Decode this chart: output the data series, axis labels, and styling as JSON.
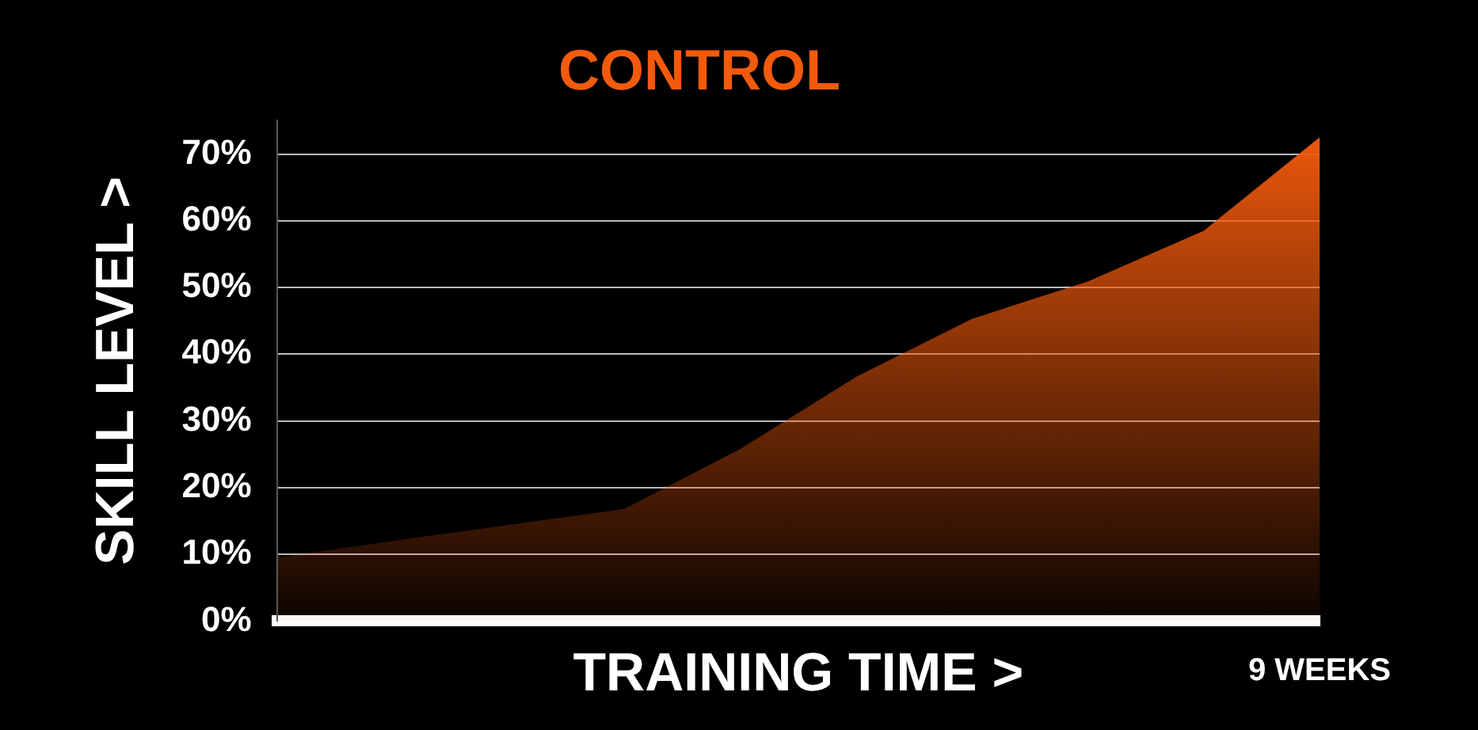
{
  "chart_data": {
    "type": "area",
    "title": "CONTROL",
    "xlabel": "TRAINING TIME >",
    "ylabel": "SKILL LEVEL >",
    "categories": [
      null,
      null,
      null,
      null,
      null,
      null,
      null,
      null,
      null,
      null
    ],
    "series": [
      {
        "color": "#f25a0c",
        "values": [
          9.5,
          12,
          14.4,
          16.8,
          25.8,
          36.6,
          45.3,
          50.9,
          58.5,
          72.5
        ]
      }
    ],
    "ylim": [
      0,
      75
    ],
    "yticks": [
      {
        "value": 0,
        "label": "0%"
      },
      {
        "value": 10,
        "label": "10%"
      },
      {
        "value": 20,
        "label": "20%"
      },
      {
        "value": 30,
        "label": "30%"
      },
      {
        "value": 40,
        "label": "40%"
      },
      {
        "value": 50,
        "label": "50%"
      },
      {
        "value": 60,
        "label": "60%"
      },
      {
        "value": 70,
        "label": "70%"
      }
    ],
    "grid": "y",
    "legend": false,
    "tick_labels": "y",
    "annotations": [
      "9 WEEKS"
    ]
  }
}
